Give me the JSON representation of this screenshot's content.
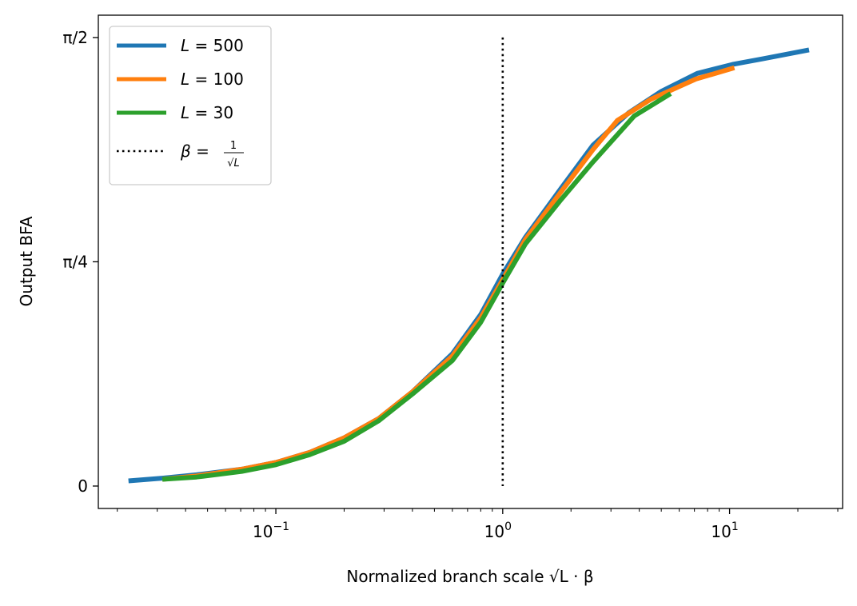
{
  "chart_data": {
    "type": "line",
    "xscale": "log",
    "xlim": [
      0.0165,
      31.5
    ],
    "ylim": [
      -0.0785,
      1.649
    ],
    "xlabel": "Normalized branch scale √L · β",
    "ylabel": "Output BFA",
    "x_ticks": [
      {
        "value": 0.1,
        "base": "10",
        "exp": "−1"
      },
      {
        "value": 1,
        "base": "10",
        "exp": "0"
      },
      {
        "value": 10,
        "base": "10",
        "exp": "1"
      }
    ],
    "y_ticks": [
      {
        "value": 0,
        "label": "0"
      },
      {
        "value": 0.7854,
        "label": "π/4"
      },
      {
        "value": 1.5708,
        "label": "π/2"
      }
    ],
    "legend": {
      "location": "upper-left",
      "entries": [
        {
          "var": "L",
          "op": " = ",
          "val": "500"
        },
        {
          "var": "L",
          "op": " = ",
          "val": "100"
        },
        {
          "var": "L",
          "op": " = ",
          "val": "30"
        },
        {
          "var": "β",
          "op": " = ",
          "num": "1",
          "den": "√L"
        }
      ]
    },
    "series": [
      {
        "name": "L = 500",
        "color": "#1f77b4",
        "x": [
          0.0224,
          0.0316,
          0.0447,
          0.0707,
          0.1,
          0.141,
          0.2,
          0.283,
          0.4,
          0.6,
          0.8,
          1.0,
          1.26,
          1.8,
          2.5,
          3.6,
          5.0,
          7.2,
          10.3,
          14.0,
          22.4
        ],
        "y": [
          0.0181,
          0.0275,
          0.0393,
          0.0589,
          0.0825,
          0.1178,
          0.1689,
          0.2356,
          0.3299,
          0.4635,
          0.6008,
          0.7422,
          0.8718,
          1.0406,
          1.1938,
          1.3077,
          1.3823,
          1.4451,
          1.4765,
          1.4962,
          1.5276
        ]
      },
      {
        "name": "L = 100",
        "color": "#ff7f0e",
        "x": [
          0.0316,
          0.0447,
          0.0707,
          0.1,
          0.141,
          0.2,
          0.283,
          0.4,
          0.6,
          0.8,
          1.0,
          1.26,
          1.8,
          2.5,
          3.2,
          4.5,
          7.1,
          10.5
        ],
        "y": [
          0.0236,
          0.0353,
          0.0589,
          0.0825,
          0.1178,
          0.1689,
          0.2356,
          0.3299,
          0.4555,
          0.589,
          0.7226,
          0.8639,
          1.0288,
          1.1781,
          1.2802,
          1.3547,
          1.4254,
          1.4648
        ]
      },
      {
        "name": "L = 30",
        "color": "#2ca02c",
        "x": [
          0.0316,
          0.0447,
          0.0707,
          0.1,
          0.141,
          0.2,
          0.283,
          0.4,
          0.6,
          0.8,
          1.0,
          1.26,
          1.8,
          2.5,
          3.8,
          5.5
        ],
        "y": [
          0.0236,
          0.0314,
          0.051,
          0.0746,
          0.1099,
          0.1571,
          0.2278,
          0.3221,
          0.4398,
          0.5733,
          0.7108,
          0.8482,
          1.0013,
          1.1349,
          1.2959,
          1.3744
        ]
      }
    ],
    "reference_line": {
      "label": "β = 1/√L",
      "x": 1.0,
      "y": [
        0,
        1.5708
      ],
      "color": "#000000",
      "style": "dotted"
    }
  }
}
